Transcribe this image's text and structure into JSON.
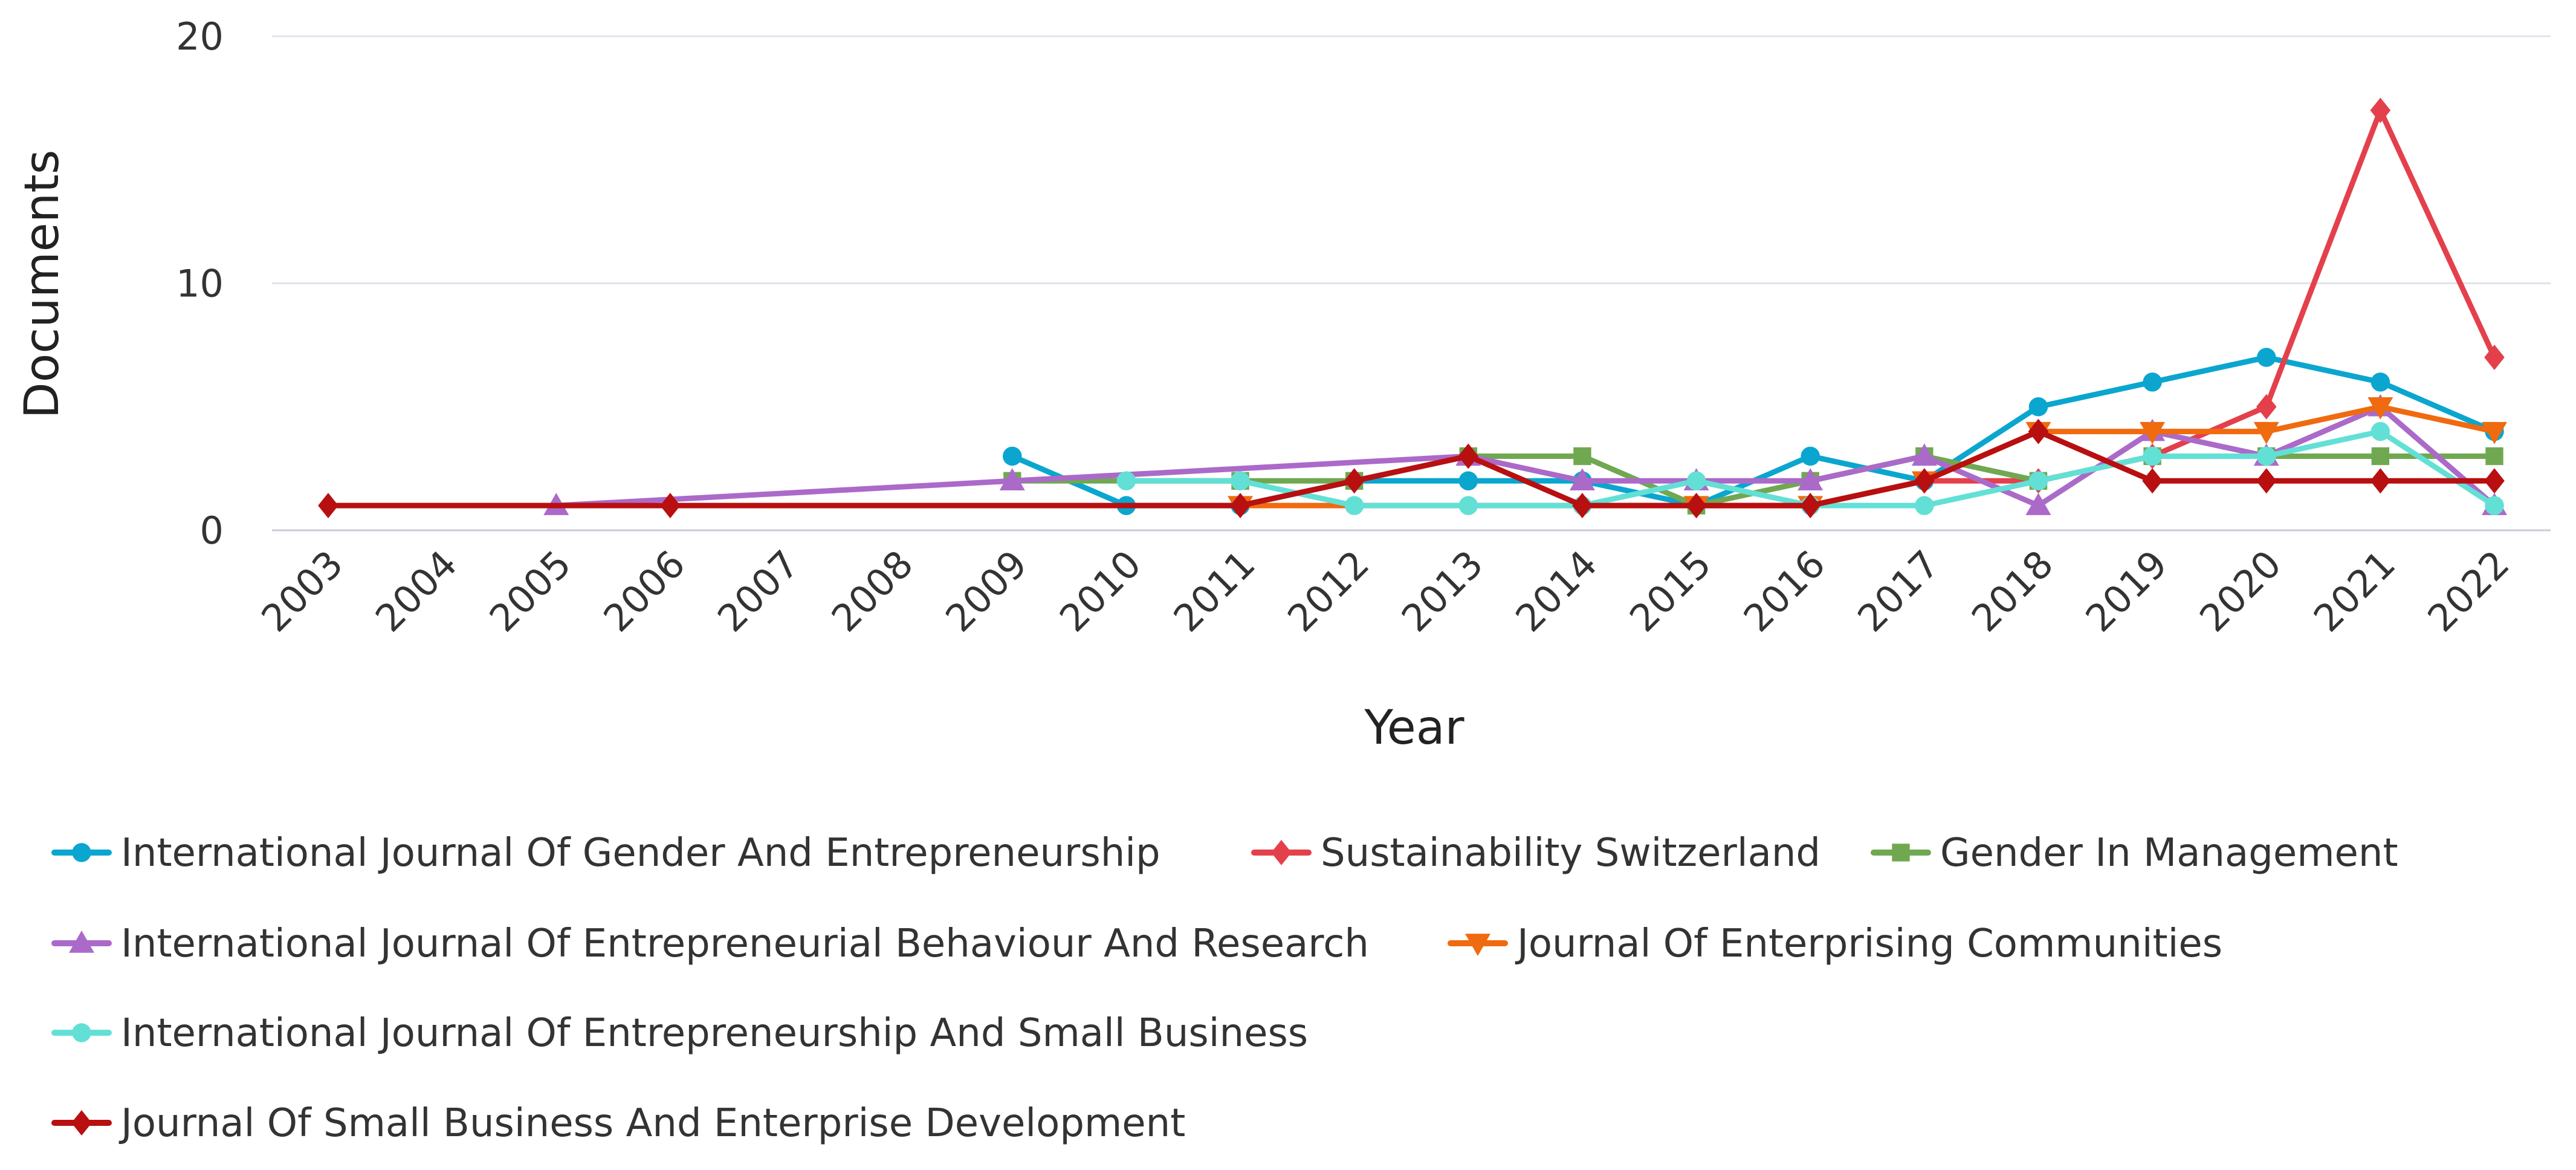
{
  "chart_data": {
    "type": "line",
    "title": "",
    "xlabel": "Year",
    "ylabel": "Documents",
    "ylim": [
      0,
      20
    ],
    "yticks": [
      0,
      10,
      20
    ],
    "legend_position": "bottom",
    "x": [
      "2003",
      "2004",
      "2005",
      "2006",
      "2007",
      "2008",
      "2009",
      "2010",
      "2011",
      "2012",
      "2013",
      "2014",
      "2015",
      "2016",
      "2017",
      "2018",
      "2019",
      "2020",
      "2021",
      "2022"
    ],
    "series": [
      {
        "name": "International Journal Of Gender And Entrepreneurship",
        "color": "#0aa6cf",
        "marker": "circle",
        "points": [
          [
            "2009",
            3
          ],
          [
            "2010",
            1
          ],
          [
            "2011",
            1
          ],
          [
            "2012",
            2
          ],
          [
            "2013",
            2
          ],
          [
            "2014",
            2
          ],
          [
            "2015",
            1
          ],
          [
            "2016",
            3
          ],
          [
            "2017",
            2
          ],
          [
            "2018",
            5
          ],
          [
            "2019",
            6
          ],
          [
            "2020",
            7
          ],
          [
            "2021",
            6
          ],
          [
            "2022",
            4
          ]
        ]
      },
      {
        "name": "Sustainability Switzerland",
        "color": "#e4404c",
        "marker": "diamond",
        "points": [
          [
            "2015",
            1
          ],
          [
            "2016",
            1
          ],
          [
            "2017",
            2
          ],
          [
            "2018",
            2
          ],
          [
            "2019",
            3
          ],
          [
            "2020",
            5
          ],
          [
            "2021",
            17
          ],
          [
            "2022",
            7
          ]
        ]
      },
      {
        "name": "Gender In Management",
        "color": "#70a851",
        "marker": "square",
        "points": [
          [
            "2009",
            2
          ],
          [
            "2011",
            2
          ],
          [
            "2012",
            2
          ],
          [
            "2013",
            3
          ],
          [
            "2014",
            3
          ],
          [
            "2015",
            1
          ],
          [
            "2016",
            2
          ],
          [
            "2017",
            3
          ],
          [
            "2018",
            2
          ],
          [
            "2019",
            3
          ],
          [
            "2020",
            3
          ],
          [
            "2021",
            3
          ],
          [
            "2022",
            3
          ]
        ]
      },
      {
        "name": "International Journal Of Entrepreneurial Behaviour And Research",
        "color": "#ab6ac9",
        "marker": "triangle-up",
        "points": [
          [
            "2005",
            1
          ],
          [
            "2009",
            2
          ],
          [
            "2013",
            3
          ],
          [
            "2014",
            2
          ],
          [
            "2015",
            2
          ],
          [
            "2016",
            2
          ],
          [
            "2017",
            3
          ],
          [
            "2018",
            1
          ],
          [
            "2019",
            4
          ],
          [
            "2020",
            3
          ],
          [
            "2021",
            5
          ],
          [
            "2022",
            1
          ]
        ]
      },
      {
        "name": "Journal Of Enterprising Communities",
        "color": "#f06a10",
        "marker": "triangle-down",
        "points": [
          [
            "2011",
            1
          ],
          [
            "2015",
            1
          ],
          [
            "2016",
            1
          ],
          [
            "2017",
            2
          ],
          [
            "2018",
            4
          ],
          [
            "2019",
            4
          ],
          [
            "2020",
            4
          ],
          [
            "2021",
            5
          ],
          [
            "2022",
            4
          ]
        ]
      },
      {
        "name": "International Journal Of Entrepreneurship And Small Business",
        "color": "#63e0d6",
        "marker": "circle",
        "points": [
          [
            "2010",
            2
          ],
          [
            "2011",
            2
          ],
          [
            "2012",
            1
          ],
          [
            "2013",
            1
          ],
          [
            "2014",
            1
          ],
          [
            "2015",
            2
          ],
          [
            "2016",
            1
          ],
          [
            "2017",
            1
          ],
          [
            "2018",
            2
          ],
          [
            "2019",
            3
          ],
          [
            "2020",
            3
          ],
          [
            "2021",
            4
          ],
          [
            "2022",
            1
          ]
        ]
      },
      {
        "name": "Journal Of Small Business And Enterprise Development",
        "color": "#b80f10",
        "marker": "diamond",
        "points": [
          [
            "2003",
            1
          ],
          [
            "2006",
            1
          ],
          [
            "2011",
            1
          ],
          [
            "2012",
            2
          ],
          [
            "2013",
            3
          ],
          [
            "2014",
            1
          ],
          [
            "2015",
            1
          ],
          [
            "2016",
            1
          ],
          [
            "2017",
            2
          ],
          [
            "2018",
            4
          ],
          [
            "2019",
            2
          ],
          [
            "2020",
            2
          ],
          [
            "2021",
            2
          ],
          [
            "2022",
            2
          ]
        ]
      }
    ]
  }
}
